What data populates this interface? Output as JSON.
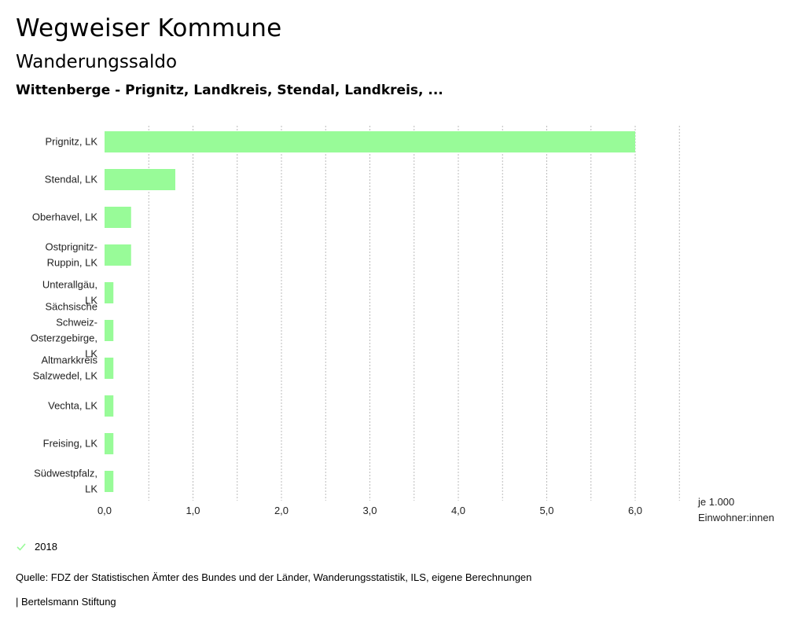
{
  "header": {
    "title": "Wegweiser Kommune",
    "subtitle": "Wanderungssaldo",
    "region": "Wittenberge - Prignitz, Landkreis, Stendal, Landkreis, ..."
  },
  "legend": {
    "label": "2018",
    "icon": "check-icon"
  },
  "footer": {
    "source": "Quelle: FDZ der Statistischen Ämter des Bundes und der Länder, Wanderungsstatistik, ILS, eigene Berechnungen",
    "credit": "| Bertelsmann Stiftung"
  },
  "colors": {
    "bar": "#98fb98",
    "grid": "#bbbbbb",
    "check": "#98fb98"
  },
  "chart_data": {
    "type": "bar",
    "orientation": "horizontal",
    "categories": [
      [
        "Prignitz, LK"
      ],
      [
        "Stendal, LK"
      ],
      [
        "Oberhavel, LK"
      ],
      [
        "Ostprignitz-",
        "Ruppin, LK"
      ],
      [
        "Unterallgäu,",
        "LK"
      ],
      [
        "Sächsische",
        "Schweiz-",
        "Osterzgebirge,",
        "LK"
      ],
      [
        "Altmarkkreis",
        "Salzwedel, LK"
      ],
      [
        "Vechta, LK"
      ],
      [
        "Freising, LK"
      ],
      [
        "Südwestpfalz,",
        "LK"
      ]
    ],
    "series": [
      {
        "name": "2018",
        "values": [
          6.0,
          0.8,
          0.3,
          0.3,
          0.1,
          0.1,
          0.1,
          0.1,
          0.1,
          0.1
        ]
      }
    ],
    "xlim": [
      0,
      6.5
    ],
    "ticks": [
      "0,0",
      "1,0",
      "2,0",
      "3,0",
      "4,0",
      "5,0",
      "6,0"
    ],
    "tick_values": [
      0,
      1,
      2,
      3,
      4,
      5,
      6
    ],
    "grid_step": 0.5,
    "unit_label": [
      "je 1.000",
      "Einwohner:innen"
    ],
    "grid": true,
    "legend_position": "bottom-left"
  }
}
